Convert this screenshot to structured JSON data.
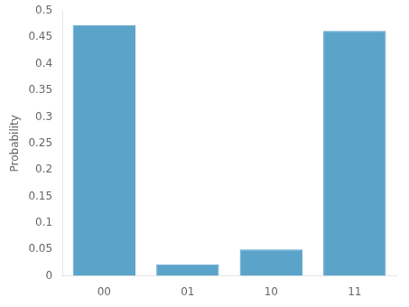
{
  "chart_data": {
    "type": "bar",
    "categories": [
      "00",
      "01",
      "10",
      "11"
    ],
    "values": [
      0.473,
      0.022,
      0.05,
      0.462
    ],
    "color": "#5ba3c9",
    "ylabel": "Probability",
    "ylim": [
      0,
      0.5
    ],
    "yticks": [
      0,
      0.05,
      0.1,
      0.15,
      0.2,
      0.25,
      0.3,
      0.35,
      0.4,
      0.45,
      0.5
    ],
    "grid": false
  }
}
